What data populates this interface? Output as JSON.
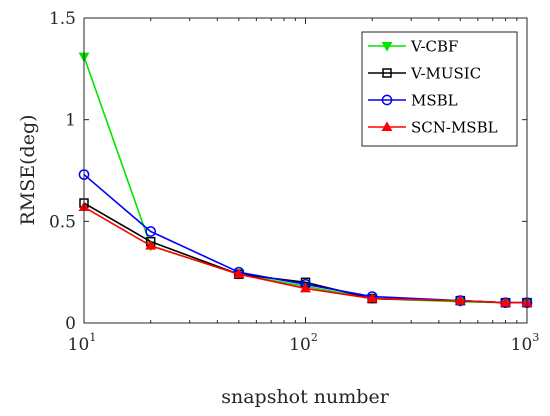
{
  "chart_data": {
    "type": "line",
    "xlabel": "snapshot number",
    "ylabel": "RMSE(deg)",
    "xscale": "log",
    "xlim": [
      10,
      1000
    ],
    "ylim": [
      0,
      1.5
    ],
    "x_ticks": [
      {
        "value": 10,
        "base": "10",
        "exp": "1"
      },
      {
        "value": 100,
        "base": "10",
        "exp": "2"
      },
      {
        "value": 1000,
        "base": "10",
        "exp": "3"
      }
    ],
    "y_ticks": [
      {
        "value": 0,
        "label": "0"
      },
      {
        "value": 0.5,
        "label": "0.5"
      },
      {
        "value": 1,
        "label": "1"
      },
      {
        "value": 1.5,
        "label": "1.5"
      }
    ],
    "grid": false,
    "legend_position": "top-right",
    "x": [
      10,
      20,
      50,
      100,
      200,
      500,
      800,
      1000
    ],
    "series": [
      {
        "name": "V-CBF",
        "color": "#00e600",
        "marker": "triangle-down",
        "values": [
          1.31,
          0.38,
          0.24,
          0.18,
          0.12,
          0.105,
          0.1,
          0.1
        ]
      },
      {
        "name": "V-MUSIC",
        "color": "#000000",
        "marker": "square",
        "values": [
          0.59,
          0.4,
          0.24,
          0.2,
          0.12,
          0.11,
          0.1,
          0.1
        ]
      },
      {
        "name": "MSBL",
        "color": "#0000ff",
        "marker": "circle",
        "values": [
          0.73,
          0.45,
          0.25,
          0.19,
          0.13,
          0.11,
          0.1,
          0.1
        ]
      },
      {
        "name": "SCN-MSBL",
        "color": "#ff0000",
        "marker": "triangle-up",
        "values": [
          0.57,
          0.38,
          0.24,
          0.17,
          0.12,
          0.11,
          0.1,
          0.1
        ]
      }
    ]
  }
}
